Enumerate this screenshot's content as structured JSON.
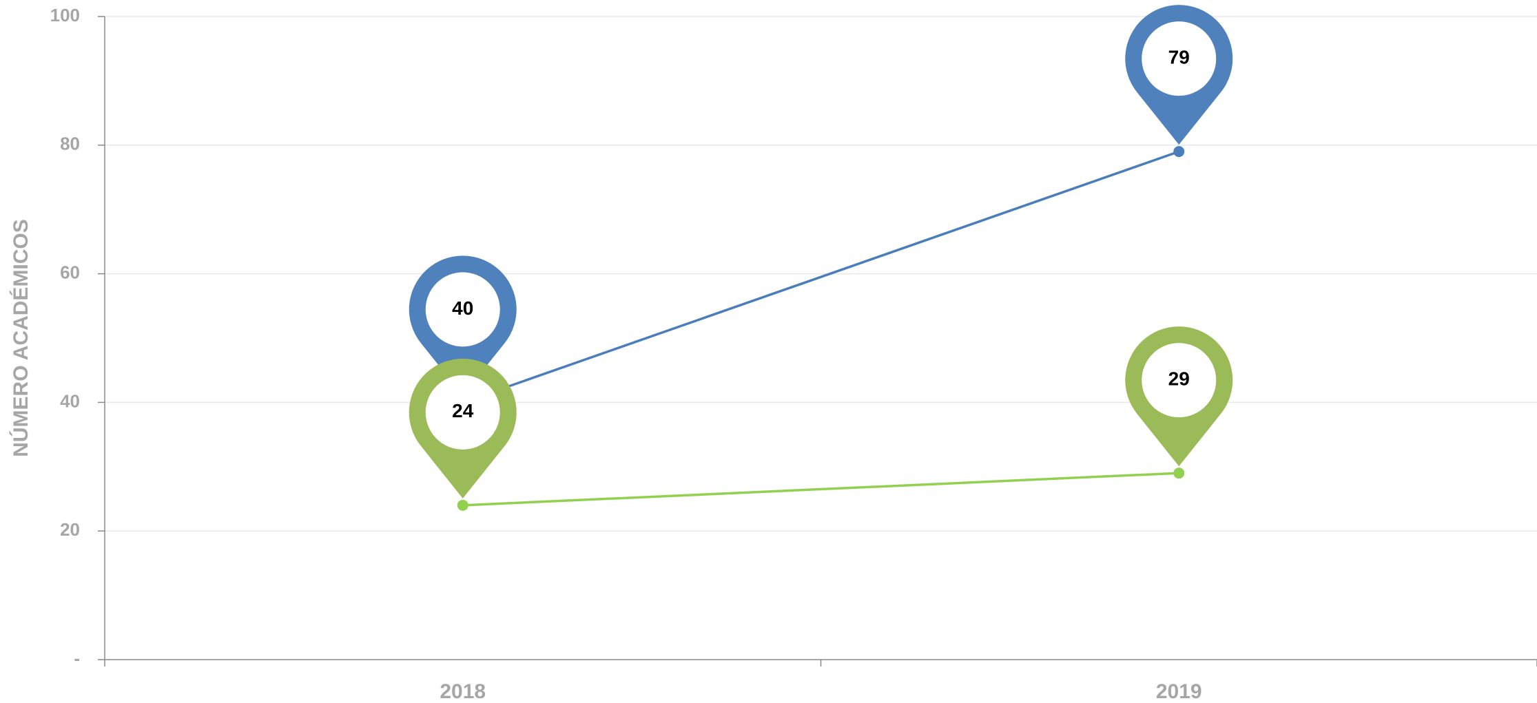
{
  "chart_data": {
    "type": "line",
    "y_axis_label": "NÚMERO ACADÉMICOS",
    "categories": [
      "2018",
      "2019"
    ],
    "series": [
      {
        "color": "#4a7ebb",
        "label_color": "#4f81bd",
        "values": [
          40,
          79
        ]
      },
      {
        "color": "#92d050",
        "label_color": "#9bbb59",
        "values": [
          24,
          29
        ]
      }
    ],
    "ylim": [
      0,
      100
    ],
    "yticks": [
      {
        "value": 0,
        "label": "-"
      },
      20,
      40,
      60,
      80,
      100
    ],
    "grid": true
  }
}
